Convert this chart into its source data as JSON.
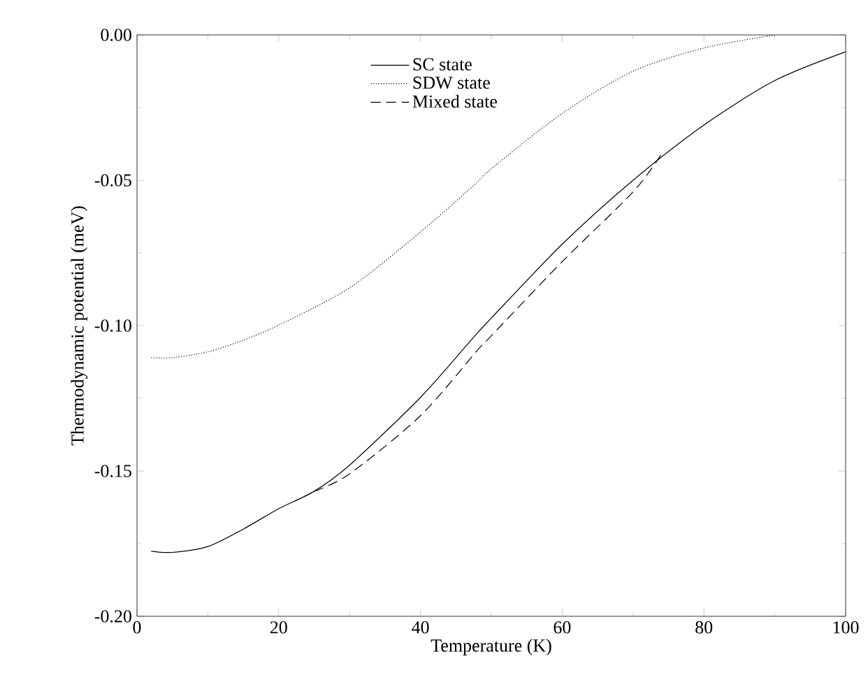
{
  "chart_data": {
    "type": "line",
    "xlabel": "Temperature (K)",
    "ylabel": "Thermodynamic potential (meV)",
    "xlim": [
      0,
      100
    ],
    "ylim": [
      -0.2,
      0
    ],
    "xticks": [
      0,
      20,
      40,
      60,
      80,
      100
    ],
    "yticks": [
      {
        "value": -0.2,
        "label": "-0.20"
      },
      {
        "value": -0.15,
        "label": "-0.15"
      },
      {
        "value": -0.1,
        "label": "-0.10"
      },
      {
        "value": -0.05,
        "label": "-0.05"
      },
      {
        "value": 0,
        "label": "0.00"
      }
    ],
    "legend": "top",
    "grid": false,
    "series": [
      {
        "name": "SC state",
        "color": "#000000",
        "line_style": "solid",
        "x": [
          2,
          5,
          10,
          15,
          20,
          25,
          30,
          40,
          47.5,
          50,
          60,
          70,
          80,
          90,
          100
        ],
        "values": [
          -0.1776,
          -0.178,
          -0.176,
          -0.17,
          -0.163,
          -0.157,
          -0.148,
          -0.1247,
          -0.104,
          -0.0974,
          -0.072,
          -0.05,
          -0.031,
          -0.0157,
          -0.0058
        ]
      },
      {
        "name": "SDW state",
        "color": "#000000",
        "line_style": "dotted",
        "x": [
          2,
          5,
          10,
          15,
          20,
          30,
          40,
          47.5,
          50,
          60,
          70,
          80,
          90
        ],
        "values": [
          -0.111,
          -0.111,
          -0.109,
          -0.105,
          -0.0998,
          -0.087,
          -0.0678,
          -0.0518,
          -0.046,
          -0.027,
          -0.0125,
          -0.0045,
          0
        ]
      },
      {
        "name": "Mixed state",
        "color": "#000000",
        "line_style": "dashed",
        "x": [
          25,
          30,
          40,
          48.2,
          50,
          60,
          70,
          74
        ],
        "values": [
          -0.157,
          -0.151,
          -0.131,
          -0.108,
          -0.1035,
          -0.078,
          -0.054,
          -0.041
        ]
      }
    ]
  }
}
